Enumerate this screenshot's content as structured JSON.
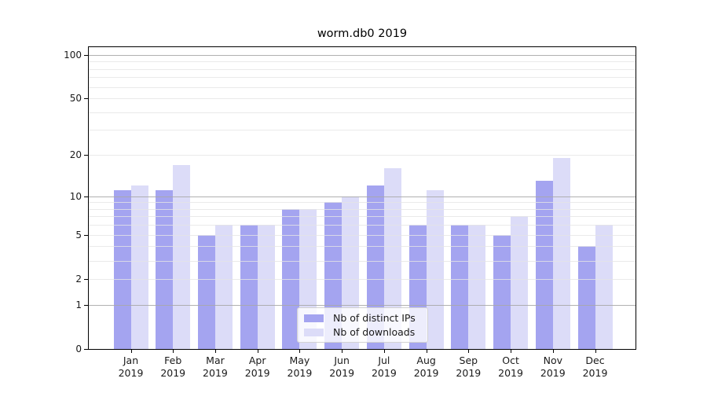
{
  "chart_data": {
    "type": "bar",
    "title": "worm.db0 2019",
    "y_scale": "log1p",
    "ylim": [
      0,
      113
    ],
    "categories": [
      "Jan",
      "Feb",
      "Mar",
      "Apr",
      "May",
      "Jun",
      "Jul",
      "Aug",
      "Sep",
      "Oct",
      "Nov",
      "Dec"
    ],
    "x_tick_year": "2019",
    "series": [
      {
        "name": "Nb of distinct IPs",
        "color": "#a4a4f0",
        "values": [
          11,
          11,
          5,
          6,
          8,
          9,
          12,
          6,
          6,
          5,
          13,
          4
        ]
      },
      {
        "name": "Nb of downloads",
        "color": "#dcdcf8",
        "values": [
          12,
          17,
          6,
          6,
          8,
          10,
          16,
          11,
          6,
          7,
          19,
          6
        ]
      }
    ],
    "y_labeled_ticks": [
      100,
      50,
      20,
      10,
      5,
      2,
      1,
      0
    ],
    "grid": {
      "major_values": [
        1,
        10,
        100
      ],
      "minor_values": [
        2,
        3,
        4,
        5,
        6,
        7,
        8,
        9,
        20,
        30,
        40,
        50,
        60,
        70,
        80,
        90
      ],
      "major_color": "rgba(168,168,168,0.9)",
      "minor_color": "rgba(229,229,229,0.8)"
    },
    "legend_position": "inside lower center",
    "colors": {
      "background": "#ffffff",
      "spine": "#000000",
      "tick_label": "#1a1a1a"
    }
  }
}
